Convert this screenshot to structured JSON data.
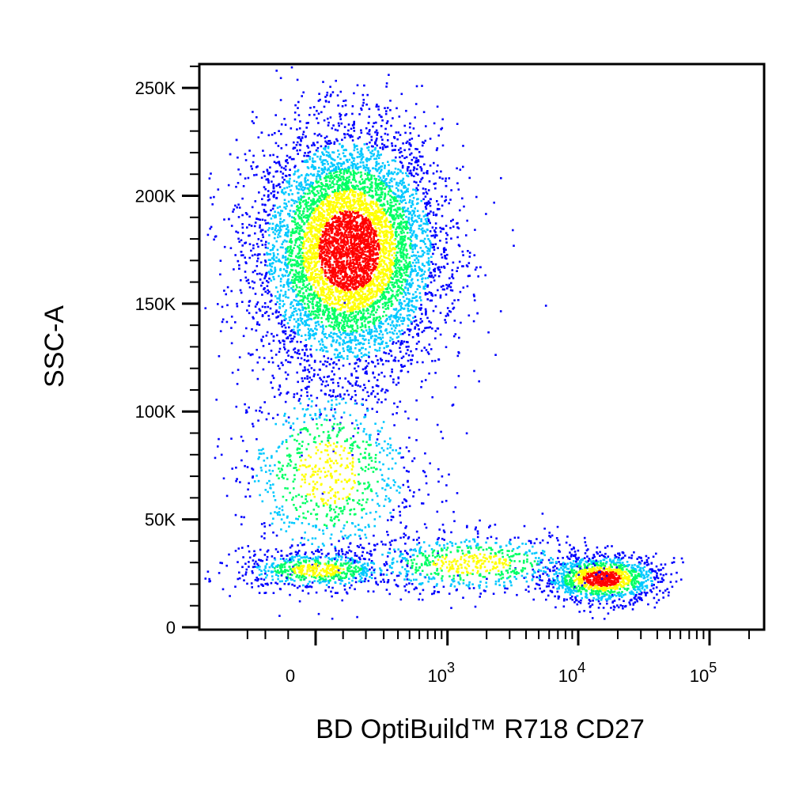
{
  "chart_data": {
    "type": "scatter",
    "subtype": "flow-cytometry-density-dot-plot",
    "xlabel": "BD OptiBuild™ R718 CD27",
    "ylabel": "SSC-A",
    "x_scale": "biexponential",
    "y_scale": "linear",
    "ylim": [
      0,
      262144
    ],
    "y_ticks": [
      {
        "value": 0,
        "label": "0"
      },
      {
        "value": 50000,
        "label": "50K"
      },
      {
        "value": 100000,
        "label": "100K"
      },
      {
        "value": 150000,
        "label": "150K"
      },
      {
        "value": 200000,
        "label": "200K"
      },
      {
        "value": 250000,
        "label": "250K"
      }
    ],
    "x_ticks": [
      {
        "value": 0,
        "base": "0",
        "exp": ""
      },
      {
        "value": 1000,
        "base": "10",
        "exp": "3"
      },
      {
        "value": 10000,
        "base": "10",
        "exp": "4"
      },
      {
        "value": 100000,
        "base": "10",
        "exp": "5"
      }
    ],
    "grid": false,
    "colormap": [
      "#0000ff",
      "#00c8ff",
      "#00ff64",
      "#ffff00",
      "#ff0000"
    ],
    "populations": [
      {
        "name": "",
        "x_center": 120,
        "x_spread_decades": 0.35,
        "y_center": 175000,
        "y_spread": 28000,
        "count": 7000
      },
      {
        "name": "",
        "x_center": 40,
        "x_spread_decades": 0.35,
        "y_center": 72000,
        "y_spread": 22000,
        "count": 900
      },
      {
        "name": "",
        "x_center": 5,
        "x_spread_decades": 0.3,
        "y_center": 27000,
        "y_spread": 4500,
        "count": 700
      },
      {
        "name": "",
        "x_center": 15000,
        "x_spread_decades": 0.22,
        "y_center": 23000,
        "y_spread": 5500,
        "count": 1300
      },
      {
        "name": "",
        "x_center": 1500,
        "x_spread_decades": 0.45,
        "y_center": 30000,
        "y_spread": 7000,
        "count": 700
      }
    ]
  }
}
